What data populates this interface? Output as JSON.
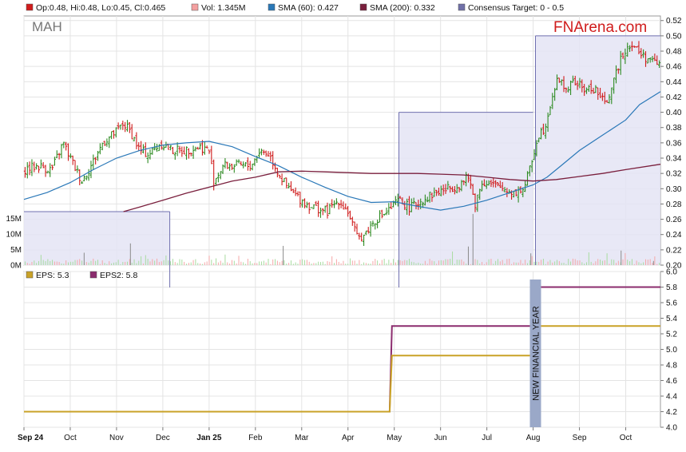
{
  "top_legend": [
    {
      "label": "Op:0.48, Hi:0.48, Lo:0.45, Cl:0.465",
      "color": "#d01c1c"
    },
    {
      "label": "Vol: 1.345M",
      "color": "#f4a0a0"
    },
    {
      "label": "SMA (60): 0.427",
      "color": "#2a78b8"
    },
    {
      "label": "SMA (200): 0.332",
      "color": "#7a1f3d"
    },
    {
      "label": "Consensus Target: 0 - 0.5",
      "color": "#7070a8"
    }
  ],
  "ticker": "MAH",
  "brand": "FNArena.com",
  "bottom_legend": [
    {
      "label": "EPS: 5.3",
      "color": "#c9a227"
    },
    {
      "label": "EPS2: 5.8",
      "color": "#8b2c6e"
    }
  ],
  "annotation": "NEW FINANCIAL YEAR",
  "colors": {
    "up": "#2e8b22",
    "down": "#d01c1c",
    "eps": "#c9a227",
    "eps2": "#8b2c6e",
    "sma60": "#2a78b8",
    "sma200": "#7a1f3d",
    "consensus_fill": "#e4e4f4",
    "consensus_line": "#7070b0",
    "annotation_bar": "#9aa8c8"
  },
  "chart_data": [
    {
      "type": "line",
      "x_ticks": [
        "Sep 24",
        "Oct",
        "Nov",
        "Dec",
        "Jan 25",
        "Feb",
        "Mar",
        "Apr",
        "May",
        "Jun",
        "Jul",
        "Aug",
        "Sep",
        "Oct"
      ],
      "x_ticks_bold": [
        "Sep 24",
        "Jan 25"
      ],
      "x_range": [
        0,
        13.75
      ],
      "y_ticks": [
        "0.20",
        "0.22",
        "0.24",
        "0.26",
        "0.28",
        "0.30",
        "0.32",
        "0.34",
        "0.36",
        "0.38",
        "0.40",
        "0.42",
        "0.44",
        "0.46",
        "0.48",
        "0.50",
        "0.52"
      ],
      "ylim": [
        0.2,
        0.526
      ],
      "price_anchors": [
        [
          0,
          0.325
        ],
        [
          0.3,
          0.33
        ],
        [
          0.6,
          0.325
        ],
        [
          0.85,
          0.36
        ],
        [
          1.0,
          0.34
        ],
        [
          1.25,
          0.31
        ],
        [
          1.45,
          0.33
        ],
        [
          1.7,
          0.36
        ],
        [
          2.0,
          0.375
        ],
        [
          2.15,
          0.385
        ],
        [
          2.3,
          0.375
        ],
        [
          2.5,
          0.35
        ],
        [
          2.7,
          0.345
        ],
        [
          2.95,
          0.36
        ],
        [
          3.2,
          0.35
        ],
        [
          3.5,
          0.35
        ],
        [
          3.8,
          0.355
        ],
        [
          4.0,
          0.35
        ],
        [
          4.1,
          0.31
        ],
        [
          4.3,
          0.33
        ],
        [
          4.6,
          0.33
        ],
        [
          4.9,
          0.33
        ],
        [
          5.1,
          0.35
        ],
        [
          5.3,
          0.345
        ],
        [
          5.5,
          0.32
        ],
        [
          5.7,
          0.3
        ],
        [
          5.9,
          0.29
        ],
        [
          6.1,
          0.28
        ],
        [
          6.3,
          0.275
        ],
        [
          6.55,
          0.27
        ],
        [
          6.8,
          0.285
        ],
        [
          7.0,
          0.27
        ],
        [
          7.2,
          0.235
        ],
        [
          7.35,
          0.24
        ],
        [
          7.6,
          0.26
        ],
        [
          7.85,
          0.27
        ],
        [
          8.1,
          0.285
        ],
        [
          8.35,
          0.275
        ],
        [
          8.6,
          0.285
        ],
        [
          8.9,
          0.295
        ],
        [
          9.15,
          0.3
        ],
        [
          9.4,
          0.305
        ],
        [
          9.6,
          0.315
        ],
        [
          9.75,
          0.28
        ],
        [
          9.9,
          0.31
        ],
        [
          10.1,
          0.305
        ],
        [
          10.35,
          0.3
        ],
        [
          10.6,
          0.295
        ],
        [
          10.8,
          0.3
        ],
        [
          10.95,
          0.33
        ],
        [
          11.1,
          0.37
        ],
        [
          11.25,
          0.38
        ],
        [
          11.4,
          0.42
        ],
        [
          11.55,
          0.445
        ],
        [
          11.7,
          0.43
        ],
        [
          11.9,
          0.44
        ],
        [
          12.1,
          0.43
        ],
        [
          12.35,
          0.43
        ],
        [
          12.55,
          0.41
        ],
        [
          12.75,
          0.44
        ],
        [
          12.9,
          0.475
        ],
        [
          13.1,
          0.49
        ],
        [
          13.35,
          0.475
        ],
        [
          13.6,
          0.465
        ]
      ],
      "sma60": [
        [
          0,
          0.286
        ],
        [
          0.5,
          0.295
        ],
        [
          1.0,
          0.308
        ],
        [
          1.5,
          0.325
        ],
        [
          2.0,
          0.34
        ],
        [
          2.5,
          0.35
        ],
        [
          3.0,
          0.357
        ],
        [
          3.5,
          0.36
        ],
        [
          4.0,
          0.362
        ],
        [
          4.5,
          0.355
        ],
        [
          5.0,
          0.342
        ],
        [
          5.5,
          0.33
        ],
        [
          6.0,
          0.315
        ],
        [
          6.5,
          0.302
        ],
        [
          7.0,
          0.29
        ],
        [
          7.5,
          0.282
        ],
        [
          8.0,
          0.283
        ],
        [
          8.5,
          0.277
        ],
        [
          9.0,
          0.272
        ],
        [
          9.5,
          0.277
        ],
        [
          10.0,
          0.285
        ],
        [
          10.5,
          0.295
        ],
        [
          11.0,
          0.305
        ],
        [
          11.3,
          0.315
        ],
        [
          11.6,
          0.33
        ],
        [
          12.0,
          0.35
        ],
        [
          12.5,
          0.37
        ],
        [
          13.0,
          0.39
        ],
        [
          13.3,
          0.41
        ],
        [
          13.75,
          0.427
        ]
      ],
      "sma200": [
        [
          2.15,
          0.27
        ],
        [
          2.5,
          0.276
        ],
        [
          3.0,
          0.285
        ],
        [
          3.5,
          0.294
        ],
        [
          4.0,
          0.302
        ],
        [
          4.5,
          0.31
        ],
        [
          5.0,
          0.315
        ],
        [
          5.5,
          0.322
        ],
        [
          6.0,
          0.323
        ],
        [
          6.5,
          0.322
        ],
        [
          7.0,
          0.321
        ],
        [
          7.5,
          0.32
        ],
        [
          8.0,
          0.32
        ],
        [
          8.5,
          0.32
        ],
        [
          9.0,
          0.319
        ],
        [
          9.5,
          0.318
        ],
        [
          10.0,
          0.315
        ],
        [
          10.5,
          0.312
        ],
        [
          11.0,
          0.31
        ],
        [
          11.5,
          0.312
        ],
        [
          12.0,
          0.316
        ],
        [
          12.5,
          0.32
        ],
        [
          13.0,
          0.325
        ],
        [
          13.75,
          0.332
        ]
      ],
      "consensus_target": [
        {
          "x": [
            0,
            3.15
          ],
          "value": 0.27
        },
        {
          "x": [
            8.1,
            11.0
          ],
          "value": 0.4
        },
        {
          "x": [
            11.05,
            13.75
          ],
          "value": 0.5
        }
      ],
      "volume_axis": {
        "ticks": [
          "0M",
          "5M",
          "10M",
          "15M"
        ],
        "max": 17.5
      },
      "volume_spikes": [
        [
          1.3,
          4.0
        ],
        [
          2.3,
          7.0
        ],
        [
          5.6,
          6.2
        ],
        [
          9.6,
          6.0
        ],
        [
          9.7,
          16.5
        ],
        [
          10.95,
          3.8
        ],
        [
          12.9,
          4.7
        ],
        [
          13.6,
          1.345
        ]
      ]
    },
    {
      "type": "line",
      "ylim": [
        4.0,
        6.0
      ],
      "y_ticks": [
        "4.0",
        "4.2",
        "4.4",
        "4.6",
        "4.8",
        "5.0",
        "5.2",
        "5.4",
        "5.6",
        "5.8",
        "6.0"
      ],
      "series": [
        {
          "name": "EPS",
          "points": [
            [
              0,
              4.2
            ],
            [
              7.9,
              4.2
            ],
            [
              7.95,
              4.92
            ],
            [
              11.05,
              4.92
            ],
            [
              11.1,
              5.3
            ],
            [
              13.75,
              5.3
            ]
          ]
        },
        {
          "name": "EPS2",
          "points": [
            [
              0,
              4.2
            ],
            [
              7.9,
              4.2
            ],
            [
              7.95,
              5.3
            ],
            [
              11.05,
              5.3
            ],
            [
              11.1,
              5.8
            ],
            [
              13.75,
              5.8
            ]
          ]
        }
      ],
      "annotation_x": 11.05
    }
  ]
}
